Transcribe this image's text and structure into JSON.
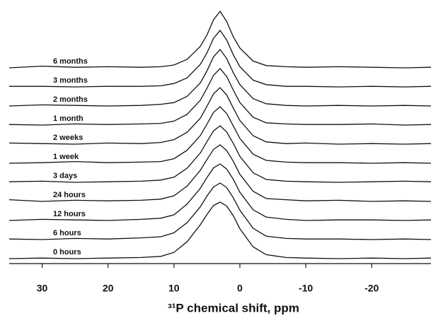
{
  "chart_data": {
    "type": "line",
    "xlabel": "³¹P chemical shift, ppm",
    "x": [
      35,
      30,
      25,
      20,
      15,
      12,
      10,
      8,
      6,
      5,
      4,
      3,
      2,
      1,
      0,
      -2,
      -4,
      -7,
      -10,
      -15,
      -20,
      -25,
      -29
    ],
    "xlim": [
      35,
      -29
    ],
    "xticks": [
      30,
      20,
      10,
      0,
      -10,
      -20
    ],
    "series": [
      {
        "name": "0 hours",
        "color": "#111111",
        "values": [
          0,
          1,
          0,
          1,
          2,
          4,
          11,
          30,
          60,
          78,
          94,
          100,
          93,
          76,
          53,
          21,
          7,
          2,
          1,
          0,
          1,
          0,
          1
        ]
      },
      {
        "name": "6 hours",
        "color": "#111111",
        "values": [
          1,
          0,
          2,
          1,
          3,
          5,
          12,
          30,
          58,
          77,
          93,
          100,
          92,
          74,
          52,
          20,
          6,
          2,
          1,
          1,
          0,
          1,
          0
        ]
      },
      {
        "name": "12 hours",
        "color": "#111111",
        "values": [
          0,
          2,
          1,
          0,
          2,
          4,
          10,
          29,
          57,
          76,
          93,
          100,
          91,
          73,
          50,
          19,
          6,
          2,
          0,
          1,
          1,
          0,
          1
        ]
      },
      {
        "name": "24 hours",
        "color": "#111111",
        "values": [
          3,
          0,
          2,
          1,
          2,
          4,
          10,
          27,
          55,
          74,
          92,
          100,
          90,
          71,
          48,
          18,
          5,
          3,
          1,
          2,
          0,
          1,
          0
        ]
      },
      {
        "name": "3 days",
        "color": "#111111",
        "values": [
          1,
          2,
          0,
          1,
          2,
          4,
          9,
          25,
          52,
          72,
          91,
          100,
          89,
          69,
          46,
          17,
          5,
          2,
          1,
          0,
          1,
          2,
          1
        ]
      },
      {
        "name": "1 week",
        "color": "#111111",
        "values": [
          0,
          1,
          3,
          1,
          2,
          3,
          8,
          23,
          49,
          69,
          90,
          100,
          88,
          66,
          44,
          16,
          5,
          2,
          1,
          1,
          0,
          1,
          0
        ]
      },
      {
        "name": "2 weeks",
        "color": "#111111",
        "values": [
          2,
          1,
          0,
          2,
          1,
          3,
          8,
          21,
          46,
          67,
          89,
          100,
          87,
          64,
          42,
          15,
          4,
          1,
          2,
          0,
          1,
          0,
          1
        ]
      },
      {
        "name": "1 month",
        "color": "#111111",
        "values": [
          1,
          0,
          2,
          1,
          2,
          3,
          7,
          19,
          44,
          65,
          88,
          100,
          86,
          62,
          40,
          14,
          4,
          2,
          1,
          1,
          2,
          0,
          1
        ]
      },
      {
        "name": "2 months",
        "color": "#111111",
        "values": [
          0,
          2,
          1,
          0,
          1,
          3,
          6,
          17,
          41,
          62,
          87,
          100,
          84,
          59,
          38,
          13,
          4,
          1,
          0,
          1,
          0,
          1,
          0
        ]
      },
      {
        "name": "3 months",
        "color": "#111111",
        "values": [
          1,
          1,
          0,
          1,
          1,
          2,
          6,
          16,
          40,
          60,
          86,
          100,
          83,
          57,
          36,
          12,
          4,
          1,
          1,
          0,
          1,
          0,
          1
        ]
      },
      {
        "name": "6 months",
        "color": "#111111",
        "values": [
          0,
          3,
          1,
          2,
          1,
          2,
          5,
          15,
          38,
          58,
          85,
          100,
          82,
          55,
          35,
          12,
          4,
          2,
          1,
          2,
          1,
          0,
          1
        ]
      }
    ]
  }
}
